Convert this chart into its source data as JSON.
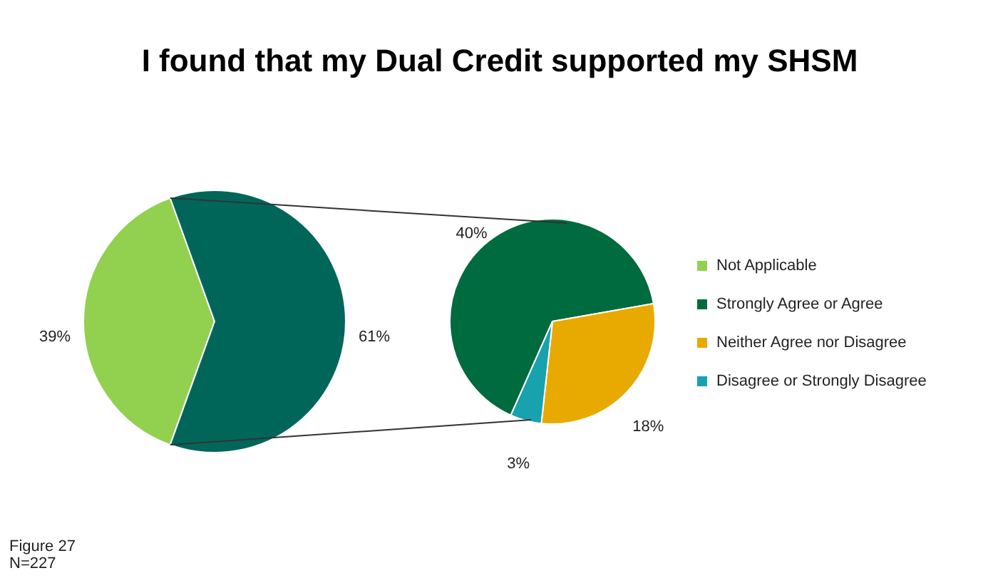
{
  "chart_data": [
    {
      "type": "pie",
      "title": "I found that my Dual Credit supported my SHSM",
      "categories": [
        "Not Applicable",
        null
      ],
      "values": [
        39,
        61
      ],
      "colors": [
        "#92d050",
        "#00665a"
      ],
      "value_labels": [
        "39%",
        "61%"
      ],
      "legend": "right",
      "annotations": [
        "Figure 27",
        "N=227"
      ]
    },
    {
      "type": "pie",
      "categories": [
        "Strongly Agree or Agree",
        "Neither Agree nor Disagree",
        "Disagree or Strongly Disagree"
      ],
      "values": [
        40,
        18,
        3
      ],
      "colors": [
        "#006b3f",
        "#e8a900",
        "#17a2ad"
      ],
      "value_labels": [
        "40%",
        "18%",
        "3%"
      ],
      "legend": "right"
    }
  ]
}
